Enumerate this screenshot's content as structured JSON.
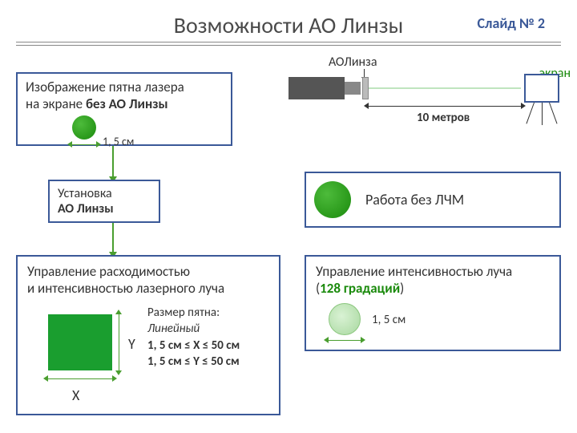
{
  "header": {
    "title": "Возможности АО Линзы",
    "slide_number": "Слайд № 2"
  },
  "optical": {
    "ao_label": "АОЛинза",
    "screen_label": "экран",
    "distance": "10 метров"
  },
  "box_without_ao": {
    "line1": "Изображение пятна лазера",
    "line2_prefix": "на экране ",
    "line2_bold": "без АО Линзы",
    "spot_size": "1, 5 см",
    "dot_color": "#1a8a0c"
  },
  "box_install": {
    "line1": "Установка",
    "line2": "АО Линзы"
  },
  "box_lfm": {
    "text": "Работа без ЛЧМ",
    "dot_color": "#1a8a0c"
  },
  "box_control": {
    "line1": "Управление расходимостью",
    "line2": "и интенсивностью лазерного луча",
    "spot_title": "Размер пятна:",
    "spot_type": "Линейный",
    "x_range": "1, 5 см ≤ Х ≤ 50 см",
    "y_range": "1, 5 см ≤ Y ≤ 50 см",
    "x_label": "X",
    "y_label": "Y",
    "square_color": "#1a9e2f"
  },
  "box_intensity": {
    "line1": "Управление интенсивностью луча",
    "line2_open": "(",
    "line2_grad": "128 градаций",
    "line2_close": ")",
    "spot_size": "1, 5 см"
  },
  "colors": {
    "border": "#3b5998",
    "arrow": "#4a9e2f",
    "text": "#333333",
    "green_accent": "#1a8a0c",
    "background": "#ffffff"
  }
}
